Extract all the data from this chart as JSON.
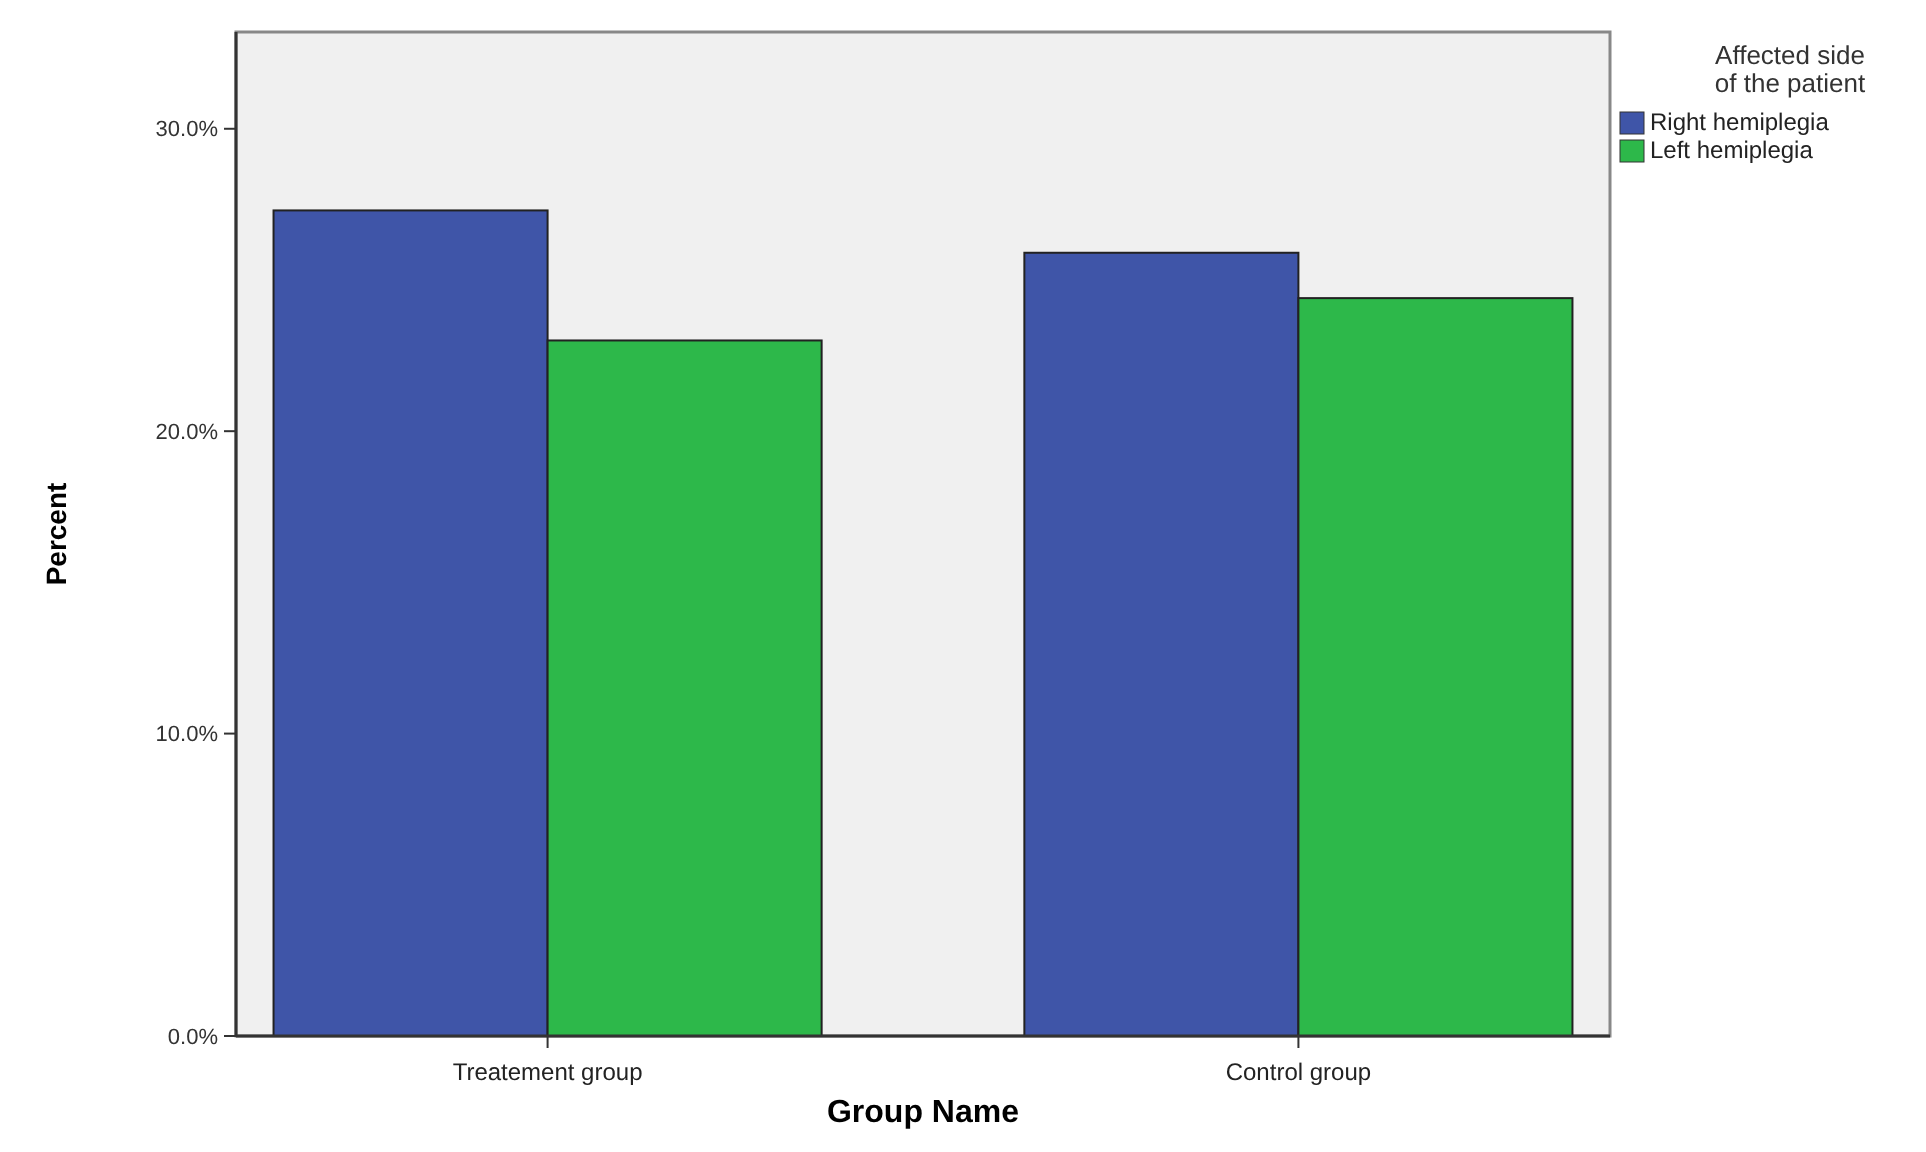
{
  "chart_data": {
    "type": "bar",
    "xlabel": "Group Name",
    "ylabel": "Percent",
    "legend_title": "Affected side\nof the patient",
    "legend": "top right",
    "categories": [
      "Treatement group",
      "Control group"
    ],
    "series": [
      {
        "name": "Right hemiplegia",
        "color": "#3f55a8",
        "values": [
          27.3,
          25.9
        ]
      },
      {
        "name": "Left hemiplegia",
        "color": "#2db84a",
        "values": [
          23.0,
          24.4
        ]
      }
    ],
    "ylim": [
      0,
      33.2
    ],
    "yticks": [
      {
        "value": 0,
        "label": "0.0%"
      },
      {
        "value": 10,
        "label": "10.0%"
      },
      {
        "value": 20,
        "label": "20.0%"
      },
      {
        "value": 30,
        "label": "30.0%"
      }
    ],
    "grid": false
  }
}
